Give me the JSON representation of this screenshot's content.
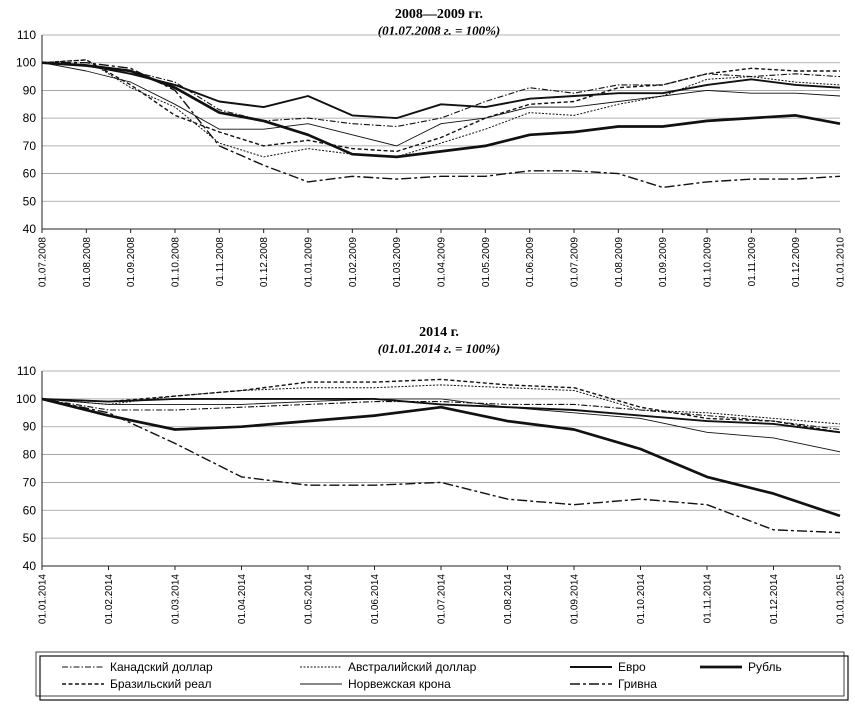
{
  "chart_data": [
    {
      "type": "line",
      "title": "2008—2009 гг.",
      "subtitle": "(01.07.2008 г. = 100%)",
      "ylim": [
        40,
        110
      ],
      "yticks": [
        40,
        50,
        60,
        70,
        80,
        90,
        100,
        110
      ],
      "x_ticks": [
        "01.07.2008",
        "01.08.2008",
        "01.09.2008",
        "01.10.2008",
        "01.11.2008",
        "01.12.2008",
        "01.01.2009",
        "01.02.2009",
        "01.03.2009",
        "01.04.2009",
        "01.05.2009",
        "01.06.2009",
        "01.07.2009",
        "01.08.2009",
        "01.09.2009",
        "01.10.2009",
        "01.11.2009",
        "01.12.2009",
        "01.01.2010"
      ],
      "grid": true,
      "series": [
        {
          "name": "Канадский доллар",
          "values": [
            100,
            99,
            97,
            93,
            83,
            79,
            80,
            78,
            77,
            80,
            86,
            91,
            89,
            92,
            92,
            96,
            95,
            96,
            95
          ]
        },
        {
          "name": "Австралийский доллар",
          "values": [
            100,
            101,
            91,
            84,
            71,
            66,
            69,
            67,
            66,
            71,
            76,
            82,
            81,
            85,
            88,
            94,
            95,
            93,
            92
          ]
        },
        {
          "name": "Евро",
          "values": [
            100,
            99,
            96,
            92,
            86,
            84,
            88,
            81,
            80,
            85,
            84,
            87,
            88,
            89,
            89,
            92,
            94,
            92,
            91
          ]
        },
        {
          "name": "Рубль",
          "values": [
            100,
            99,
            97,
            91,
            82,
            79,
            74,
            67,
            66,
            68,
            70,
            74,
            75,
            77,
            77,
            79,
            80,
            81,
            78
          ]
        },
        {
          "name": "Бразильский реал",
          "values": [
            100,
            101,
            92,
            81,
            75,
            70,
            72,
            69,
            68,
            73,
            80,
            85,
            86,
            91,
            92,
            96,
            98,
            97,
            97
          ]
        },
        {
          "name": "Норвежская крона",
          "values": [
            100,
            97,
            93,
            85,
            76,
            76,
            78,
            74,
            70,
            78,
            80,
            84,
            84,
            86,
            88,
            90,
            89,
            89,
            88
          ]
        },
        {
          "name": "Гривна",
          "values": [
            100,
            100,
            98,
            90,
            70,
            63,
            57,
            59,
            58,
            59,
            59,
            61,
            61,
            60,
            55,
            57,
            58,
            58,
            59
          ]
        }
      ]
    },
    {
      "type": "line",
      "title": "2014 г.",
      "subtitle": "(01.01.2014 г. = 100%)",
      "ylim": [
        40,
        110
      ],
      "yticks": [
        40,
        50,
        60,
        70,
        80,
        90,
        100,
        110
      ],
      "x_ticks": [
        "01.01.2014",
        "01.02.2014",
        "01.03.2014",
        "01.04.2014",
        "01.05.2014",
        "01.06.2014",
        "01.07.2014",
        "01.08.2014",
        "01.09.2014",
        "01.10.2014",
        "01.11.2014",
        "01.12.2014",
        "01.01.2015"
      ],
      "grid": true,
      "series": [
        {
          "name": "Канадский доллар",
          "values": [
            100,
            96,
            96,
            97,
            98,
            99,
            99,
            98,
            98,
            96,
            94,
            92,
            89
          ]
        },
        {
          "name": "Австралийский доллар",
          "values": [
            100,
            98,
            101,
            103,
            104,
            104,
            105,
            104,
            103,
            96,
            95,
            93,
            91
          ]
        },
        {
          "name": "Евро",
          "values": [
            100,
            99,
            100,
            100,
            100,
            100,
            98,
            97,
            96,
            94,
            92,
            91,
            88
          ]
        },
        {
          "name": "Рубль",
          "values": [
            100,
            94,
            89,
            90,
            92,
            94,
            97,
            92,
            89,
            82,
            72,
            66,
            58
          ]
        },
        {
          "name": "Бразильский реал",
          "values": [
            100,
            99,
            101,
            103,
            106,
            106,
            107,
            105,
            104,
            97,
            93,
            92,
            88
          ]
        },
        {
          "name": "Норвежская крона",
          "values": [
            100,
            98,
            98,
            98,
            99,
            100,
            100,
            97,
            95,
            93,
            88,
            86,
            81
          ]
        },
        {
          "name": "Гривна",
          "values": [
            100,
            95,
            84,
            72,
            69,
            69,
            70,
            64,
            62,
            64,
            62,
            53,
            52
          ]
        }
      ]
    }
  ],
  "legend": {
    "rows": [
      [
        "Канадский доллар",
        "Австралийский доллар",
        "Евро",
        "Рубль"
      ],
      [
        "Бразильский реал",
        "Норвежская крона",
        "Гривна"
      ]
    ]
  }
}
